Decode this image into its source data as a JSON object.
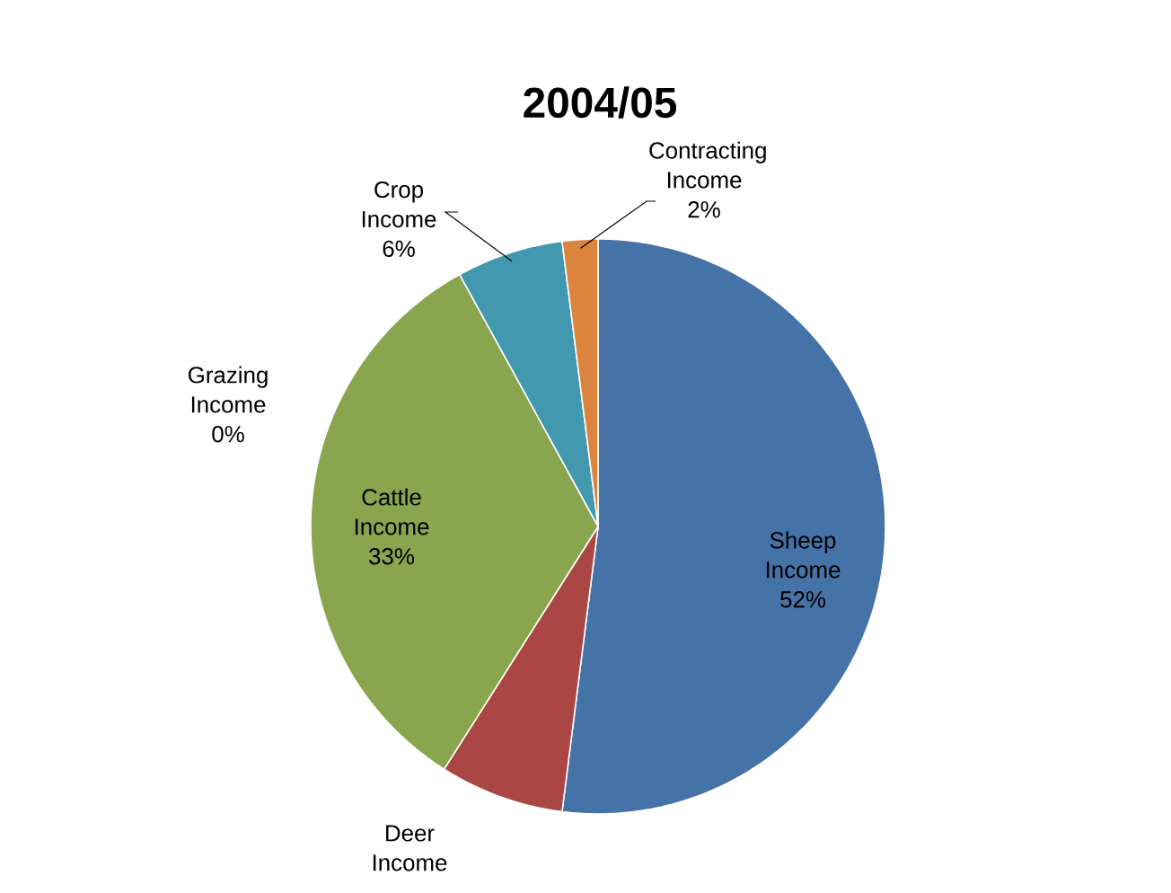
{
  "chart_data": {
    "type": "pie",
    "title": "2004/05",
    "categories": [
      "Sheep Income",
      "Deer Income",
      "Cattle Income",
      "Grazing Income",
      "Crop Income",
      "Contracting Income"
    ],
    "values": [
      52,
      7,
      33,
      0,
      6,
      2
    ],
    "colors": [
      "#4572a7",
      "#aa4643",
      "#89a54e",
      "#71588f",
      "#4198af",
      "#db843d"
    ],
    "value_labels": [
      "52%",
      null,
      "33%",
      "0%",
      "6%",
      "2%"
    ]
  }
}
